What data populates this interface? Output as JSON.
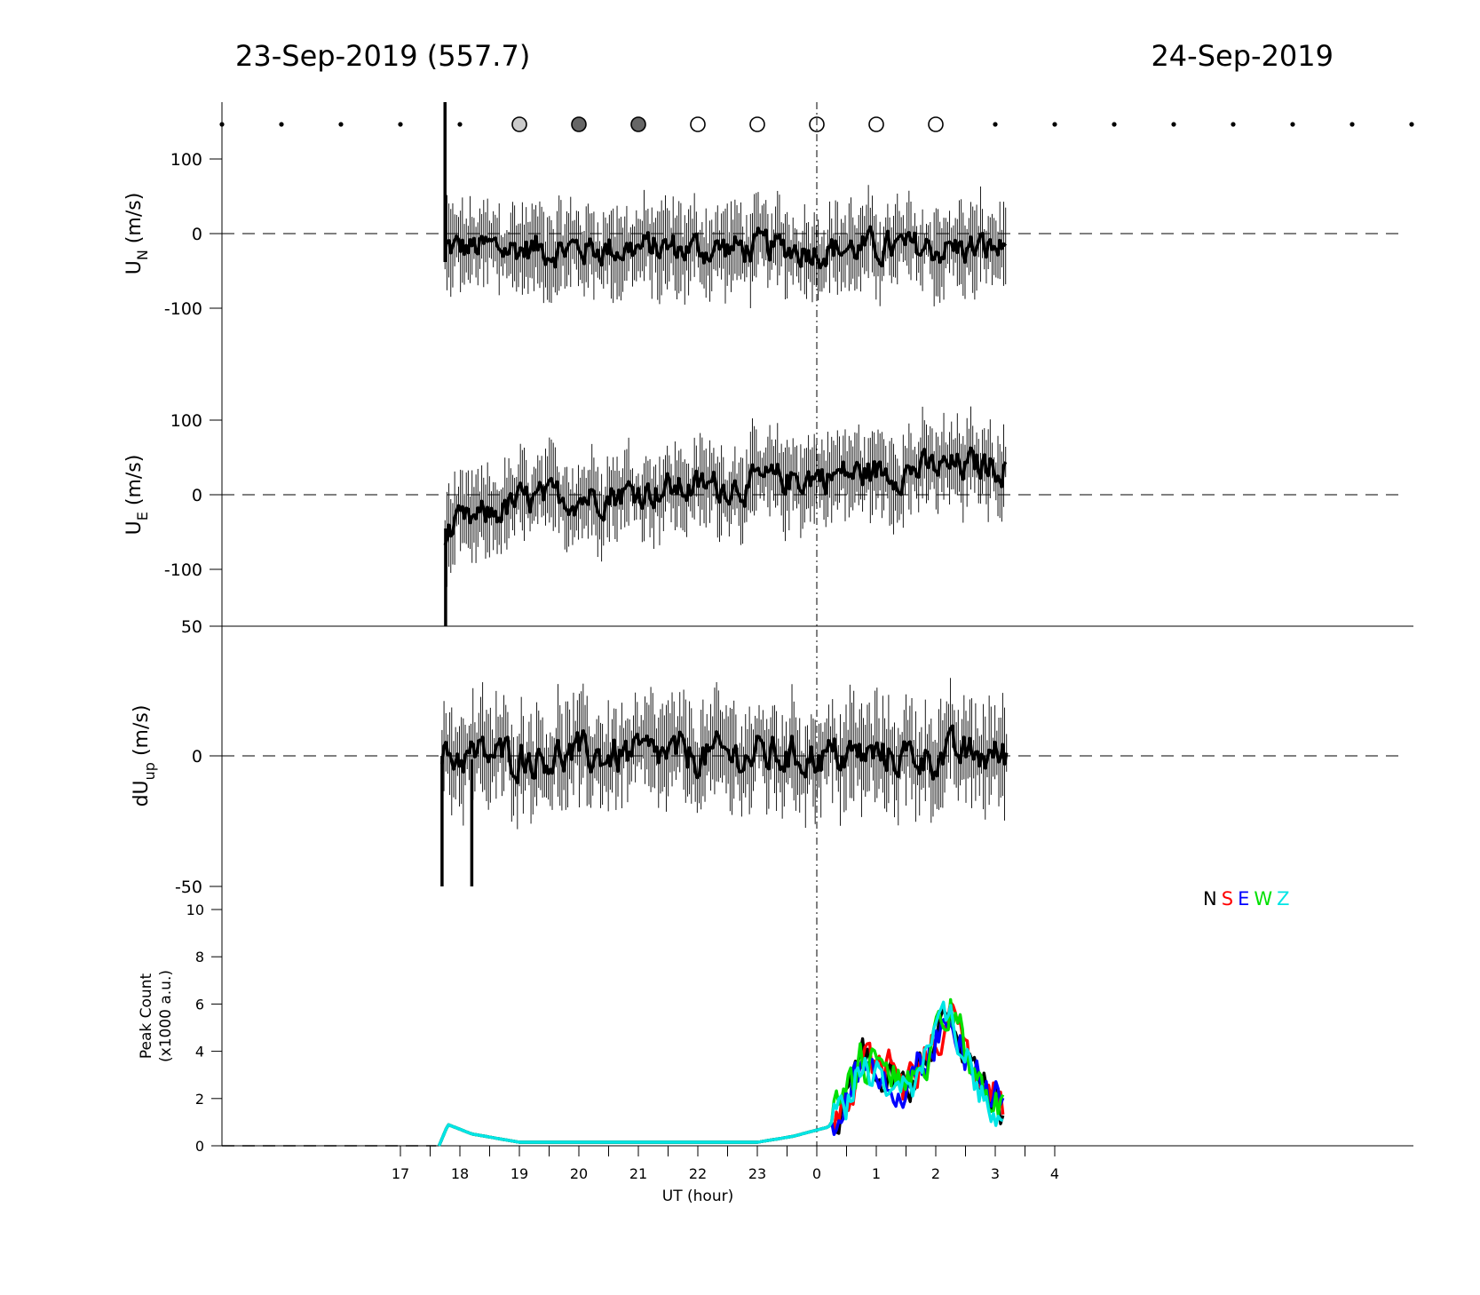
{
  "header": {
    "left_date": "23-Sep-2019 (557.7)",
    "right_date": "24-Sep-2019"
  },
  "moon_row": {
    "note": "symbols at each hour",
    "hours": [
      14,
      15,
      16,
      17,
      18,
      19,
      20,
      21,
      22,
      23,
      0,
      1,
      2,
      3,
      4,
      5,
      6,
      7,
      8,
      9,
      10
    ],
    "symbols": [
      "dot",
      "dot",
      "dot",
      "dot",
      "dot",
      "light",
      "dark",
      "dark",
      "open",
      "open",
      "open",
      "open",
      "open",
      "dot",
      "dot",
      "dot",
      "dot",
      "dot",
      "dot",
      "dot",
      "dot"
    ]
  },
  "chart_data": [
    {
      "type": "line",
      "panel": "UN",
      "ylabel": "U",
      "ylabel_sub": "N",
      "ylabel_unit": " (m/s)",
      "yticks": [
        "100",
        "0",
        "-100"
      ],
      "ylim": [
        -175,
        175
      ],
      "x_range_hours": [
        17.75,
        3.2
      ],
      "approx_mean": -20,
      "approx_errorbar": 40
    },
    {
      "type": "line",
      "panel": "UE",
      "ylabel": "U",
      "ylabel_sub": "E",
      "ylabel_unit": " (m/s)",
      "yticks": [
        "100",
        "0",
        "-100"
      ],
      "ylim": [
        -175,
        175
      ],
      "x_range_hours": [
        17.75,
        3.2
      ],
      "trend": [
        [
          17.8,
          -50
        ],
        [
          19.0,
          -10
        ],
        [
          21.0,
          5
        ],
        [
          23.0,
          15
        ],
        [
          0.0,
          25
        ],
        [
          3.0,
          40
        ]
      ],
      "approx_errorbar": 50
    },
    {
      "type": "line",
      "panel": "dUup",
      "ylabel": "dU",
      "ylabel_sub": "up",
      "ylabel_unit": " (m/s)",
      "yticks": [
        "50",
        "0",
        "-50"
      ],
      "ylim": [
        -50,
        50
      ],
      "x_range_hours": [
        17.7,
        3.2
      ],
      "approx_mean": 0,
      "approx_errorbar": 25
    },
    {
      "type": "line",
      "panel": "PeakCount",
      "ylabel_line1": "Peak Count",
      "ylabel_line2": "(x1000 a.u.)",
      "yticks": [
        "10",
        "8",
        "6",
        "4",
        "2",
        "0"
      ],
      "ylim": [
        0,
        10
      ],
      "xlabel": "UT (hour)",
      "xticks": [
        "17",
        "18",
        "19",
        "20",
        "21",
        "22",
        "23",
        "0",
        "1",
        "2",
        "3",
        "4"
      ],
      "series": [
        {
          "name": "N",
          "color": "#000000"
        },
        {
          "name": "S",
          "color": "#ff0000"
        },
        {
          "name": "E",
          "color": "#0000ff"
        },
        {
          "name": "W",
          "color": "#00e000"
        },
        {
          "name": "Z",
          "color": "#00e5e5"
        }
      ],
      "profile": [
        [
          17.65,
          0.0
        ],
        [
          17.8,
          0.9
        ],
        [
          18.2,
          0.5
        ],
        [
          19.0,
          0.15
        ],
        [
          23.0,
          0.15
        ],
        [
          23.6,
          0.4
        ],
        [
          0.2,
          0.8
        ],
        [
          0.5,
          2.0
        ],
        [
          0.75,
          3.5
        ],
        [
          1.25,
          3.0
        ],
        [
          1.5,
          2.5
        ],
        [
          1.75,
          3.5
        ],
        [
          2.0,
          4.5
        ],
        [
          2.25,
          5.8
        ],
        [
          2.5,
          4.0
        ],
        [
          2.75,
          2.5
        ],
        [
          3.0,
          2.0
        ],
        [
          3.15,
          1.2
        ]
      ]
    }
  ]
}
